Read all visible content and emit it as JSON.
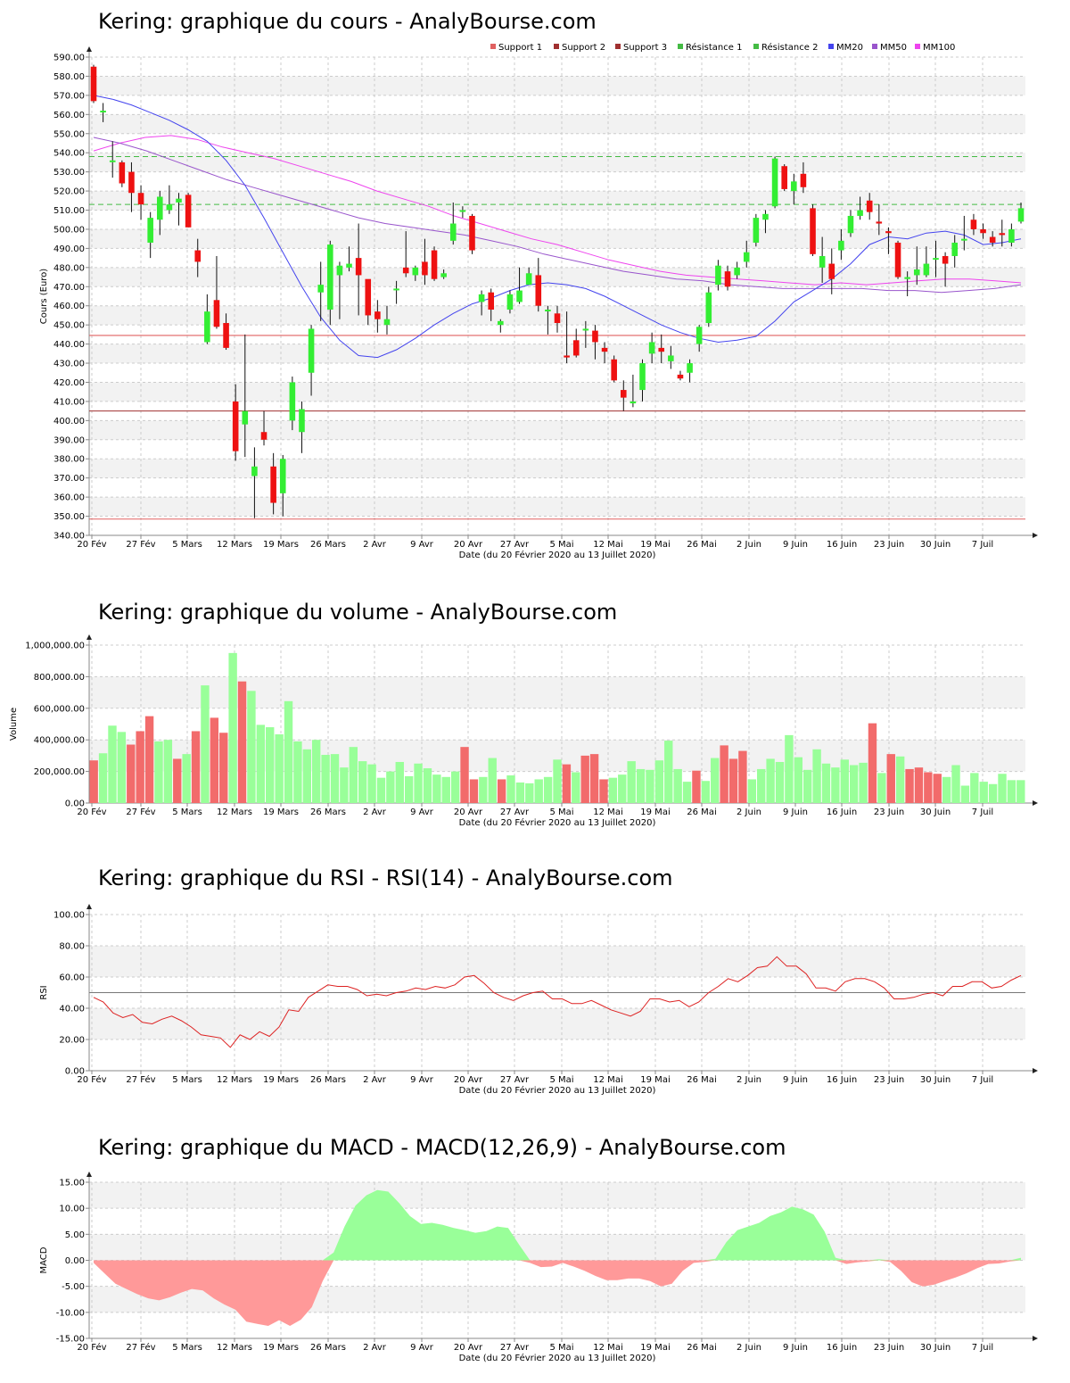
{
  "panels": [
    {
      "title": "Kering: graphique du cours - AnalyBourse.com",
      "ylabel": "Cours (Euro)"
    },
    {
      "title": "Kering: graphique du volume - AnalyBourse.com",
      "ylabel": "Volume"
    },
    {
      "title": "Kering: graphique du RSI - RSI(14) - AnalyBourse.com",
      "ylabel": "RSI"
    },
    {
      "title": "Kering: graphique du MACD - MACD(12,26,9) - AnalyBourse.com",
      "ylabel": "MACD"
    }
  ],
  "x_axis_label": "Date (du 20 Février 2020 au 13 Juillet 2020)",
  "date_ticks": [
    "20 Fév",
    "27 Fév",
    "5 Mars",
    "12 Mars",
    "19 Mars",
    "26 Mars",
    "2 Avr",
    "9 Avr",
    "20 Avr",
    "27 Avr",
    "5 Mai",
    "12 Mai",
    "19 Mai",
    "26 Mai",
    "2 Juin",
    "9 Juin",
    "16 Juin",
    "23 Juin",
    "30 Juin",
    "7 Juil"
  ],
  "colors": {
    "up": "#33ee33",
    "down": "#ee1111",
    "vol_up": "#99ff99",
    "vol_down": "#f26b6b",
    "macd_pos": "#99ff99",
    "macd_neg": "#ff9999",
    "rsi_line": "#dd2222",
    "mm20": "#4444ee",
    "mm50": "#9955cc",
    "mm100": "#ee44ee",
    "support1": "#e06060",
    "support2": "#a03030",
    "resistance1": "#44bb44",
    "grid": "#cccccc",
    "band": "#f2f2f2"
  },
  "chart_data": [
    {
      "type": "candlestick",
      "title": "Kering: graphique du cours - AnalyBourse.com",
      "ylabel": "Cours (Euro)",
      "ylim": [
        340,
        590
      ],
      "yticks": [
        "340.00",
        "350.00",
        "360.00",
        "370.00",
        "380.00",
        "390.00",
        "400.00",
        "410.00",
        "420.00",
        "430.00",
        "440.00",
        "450.00",
        "460.00",
        "470.00",
        "480.00",
        "490.00",
        "500.00",
        "510.00",
        "520.00",
        "530.00",
        "540.00",
        "550.00",
        "560.00",
        "570.00",
        "580.00",
        "590.00"
      ],
      "legend": [
        "Support 1",
        "Support 2",
        "Support 3",
        "Résistance 1",
        "Résistance 2",
        "MM20",
        "MM50",
        "MM100"
      ],
      "legend_position": "top-right",
      "levels": {
        "support1": 444.5,
        "support2": 405,
        "support3": 348.5,
        "resistance1": 538,
        "resistance2": 513
      },
      "candles": [
        [
          585,
          567,
          586,
          566
        ],
        [
          562,
          562,
          566,
          556
        ],
        [
          536,
          536,
          546,
          527
        ],
        [
          535,
          524,
          536,
          522
        ],
        [
          530,
          519,
          535,
          509
        ],
        [
          519,
          513,
          523,
          505
        ],
        [
          493,
          506,
          509,
          485
        ],
        [
          505,
          517,
          520,
          497
        ],
        [
          510,
          513,
          523,
          508
        ],
        [
          514,
          516,
          519,
          502
        ],
        [
          518,
          501,
          519,
          501
        ],
        [
          489,
          483,
          495,
          475
        ],
        [
          441,
          457,
          466,
          440
        ],
        [
          463,
          449,
          486,
          448
        ],
        [
          451,
          438,
          456,
          437
        ],
        [
          410,
          384,
          419,
          379
        ],
        [
          398,
          405,
          445,
          381
        ],
        [
          371,
          376,
          386,
          349
        ],
        [
          394,
          390,
          405,
          387
        ],
        [
          376,
          357,
          383,
          351
        ],
        [
          362,
          380,
          382,
          350
        ],
        [
          400,
          420,
          423,
          395
        ],
        [
          394,
          406,
          410,
          383
        ],
        [
          425,
          448,
          450,
          413
        ],
        [
          467,
          471,
          483,
          452
        ],
        [
          458,
          492,
          494,
          450
        ],
        [
          476,
          481,
          483,
          453
        ],
        [
          480,
          482,
          491,
          478
        ],
        [
          485,
          476,
          503,
          455
        ],
        [
          474,
          455,
          465,
          450
        ],
        [
          457,
          453,
          463,
          446
        ],
        [
          450,
          453,
          460,
          445
        ],
        [
          469,
          469,
          473,
          461
        ],
        [
          480,
          477,
          499,
          475
        ],
        [
          476,
          480,
          481,
          473
        ],
        [
          483,
          476,
          495,
          471
        ],
        [
          489,
          474,
          491,
          473
        ],
        [
          475,
          477,
          479,
          474
        ],
        [
          494,
          503,
          514,
          492
        ],
        [
          510,
          510,
          512,
          506
        ],
        [
          507,
          489,
          508,
          487
        ],
        [
          462,
          466,
          468,
          455
        ],
        [
          467,
          458,
          469,
          452
        ],
        [
          450,
          452,
          453,
          446
        ],
        [
          458,
          466,
          468,
          456
        ],
        [
          462,
          468,
          480,
          461
        ],
        [
          471,
          477,
          480,
          472
        ],
        [
          476,
          460,
          485,
          457
        ],
        [
          458,
          458,
          460,
          445
        ],
        [
          456,
          451,
          460,
          446
        ],
        [
          434,
          433,
          457,
          430
        ],
        [
          442,
          434,
          448,
          433
        ],
        [
          448,
          448,
          452,
          438
        ],
        [
          447,
          441,
          450,
          432
        ],
        [
          438,
          436,
          441,
          430
        ],
        [
          432,
          421,
          434,
          420
        ],
        [
          416,
          412,
          421,
          405
        ],
        [
          409,
          410,
          424,
          407
        ],
        [
          416,
          430,
          432,
          410
        ],
        [
          435,
          441,
          446,
          430
        ],
        [
          438,
          436,
          445,
          430
        ],
        [
          431,
          434,
          439,
          427
        ],
        [
          424,
          422,
          426,
          421
        ],
        [
          425,
          430,
          432,
          420
        ],
        [
          440,
          449,
          450,
          436
        ],
        [
          451,
          467,
          470,
          449
        ],
        [
          471,
          481,
          484,
          468
        ],
        [
          478,
          470,
          481,
          468
        ],
        [
          476,
          480,
          483,
          474
        ],
        [
          483,
          488,
          494,
          480
        ],
        [
          493,
          506,
          508,
          491
        ],
        [
          505,
          508,
          510,
          498
        ],
        [
          512,
          537,
          538,
          511
        ],
        [
          533,
          521,
          534,
          520
        ],
        [
          520,
          525,
          529,
          513
        ],
        [
          529,
          522,
          535,
          519
        ],
        [
          511,
          487,
          513,
          486
        ],
        [
          480,
          486,
          496,
          472
        ],
        [
          482,
          474,
          490,
          466
        ],
        [
          489,
          494,
          500,
          484
        ],
        [
          498,
          507,
          510,
          496
        ],
        [
          507,
          510,
          517,
          505
        ],
        [
          515,
          509,
          519,
          505
        ],
        [
          504,
          503,
          513,
          497
        ],
        [
          499,
          498,
          501,
          487
        ],
        [
          493,
          475,
          494,
          474
        ],
        [
          474,
          475,
          478,
          465
        ],
        [
          476,
          479,
          491,
          471
        ],
        [
          476,
          482,
          491,
          475
        ],
        [
          485,
          485,
          494,
          475
        ],
        [
          486,
          482,
          488,
          470
        ],
        [
          486,
          493,
          497,
          480
        ],
        [
          495,
          495,
          507,
          489
        ],
        [
          505,
          500,
          508,
          497
        ],
        [
          500,
          498,
          503,
          495
        ],
        [
          496,
          493,
          499,
          491
        ],
        [
          498,
          497,
          505,
          491
        ],
        [
          493,
          500,
          503,
          491
        ],
        [
          504,
          511,
          514,
          503
        ]
      ],
      "mm20": [
        570,
        568,
        565,
        561,
        557,
        552,
        546,
        536,
        523,
        506,
        488,
        470,
        454,
        442,
        434,
        433,
        437,
        443,
        450,
        456,
        461,
        464,
        468,
        471,
        472,
        471,
        469,
        465,
        460,
        455,
        450,
        446,
        443,
        441,
        442,
        444,
        452,
        462,
        468,
        474,
        482,
        492,
        496,
        495,
        498,
        499,
        497,
        492,
        493,
        495
      ],
      "mm50": [
        548,
        545,
        541,
        536,
        531,
        526,
        522,
        518,
        514,
        510,
        506,
        503,
        501,
        499,
        497,
        494,
        491,
        487,
        484,
        481,
        478,
        476,
        474,
        473,
        471,
        470,
        469,
        469,
        469,
        469,
        468,
        468,
        467,
        468,
        469,
        471
      ],
      "mm100": [
        541,
        545,
        548,
        549,
        547,
        543,
        540,
        537,
        533,
        529,
        525,
        520,
        516,
        512,
        507,
        503,
        499,
        495,
        492,
        488,
        484,
        481,
        478,
        476,
        475,
        474,
        473,
        472,
        471,
        472,
        471,
        472,
        473,
        474,
        474,
        473,
        472
      ]
    },
    {
      "type": "bar",
      "title": "Kering: graphique du volume - AnalyBourse.com",
      "ylabel": "Volume",
      "ylim": [
        0,
        1000000
      ],
      "yticks": [
        "0.00",
        "200,000.00",
        "400,000.00",
        "600,000.00",
        "800,000.00",
        "1,000,000.00"
      ],
      "values": [
        270000,
        315000,
        490000,
        450000,
        370000,
        455000,
        550000,
        390000,
        400000,
        280000,
        310000,
        455000,
        745000,
        540000,
        445000,
        950000,
        770000,
        710000,
        495000,
        480000,
        435000,
        645000,
        390000,
        340000,
        400000,
        305000,
        310000,
        225000,
        355000,
        265000,
        245000,
        160000,
        200000,
        260000,
        170000,
        250000,
        220000,
        180000,
        165000,
        200000,
        355000,
        150000,
        165000,
        285000,
        150000,
        175000,
        130000,
        125000,
        150000,
        165000,
        275000,
        245000,
        195000,
        300000,
        310000,
        150000,
        160000,
        180000,
        265000,
        215000,
        210000,
        270000,
        395000,
        215000,
        135000,
        205000,
        140000,
        285000,
        365000,
        280000,
        330000,
        150000,
        215000,
        280000,
        260000,
        430000,
        290000,
        210000,
        340000,
        250000,
        225000,
        275000,
        240000,
        255000,
        505000,
        190000,
        310000,
        295000,
        215000,
        225000,
        195000,
        185000,
        165000,
        240000,
        110000,
        190000,
        135000,
        120000,
        185000,
        145000,
        145000
      ]
    },
    {
      "type": "line",
      "title": "Kering: graphique du RSI - RSI(14) - AnalyBourse.com",
      "ylabel": "RSI",
      "ylim": [
        0,
        100
      ],
      "yticks": [
        "0.00",
        "20.00",
        "40.00",
        "60.00",
        "80.00",
        "100.00"
      ],
      "reference": 50,
      "values": [
        47,
        44,
        37,
        34,
        36,
        31,
        30,
        33,
        35,
        32,
        28,
        23,
        22,
        21,
        15,
        23,
        20,
        25,
        22,
        28,
        39,
        38,
        47,
        51,
        55,
        54,
        54,
        52,
        48,
        49,
        48,
        50,
        51,
        53,
        52,
        54,
        53,
        55,
        60,
        61,
        56,
        50,
        47,
        45,
        48,
        50,
        51,
        46,
        46,
        43,
        43,
        45,
        42,
        39,
        37,
        35,
        38,
        46,
        46,
        44,
        45,
        41,
        44,
        50,
        54,
        59,
        57,
        61,
        66,
        67,
        73,
        67,
        67,
        62,
        53,
        53,
        51,
        57,
        59,
        59,
        57,
        53,
        46,
        46,
        47,
        49,
        50,
        48,
        54,
        54,
        57,
        57,
        53,
        54,
        58,
        61
      ]
    },
    {
      "type": "area",
      "title": "Kering: graphique du MACD - MACD(12,26,9) - AnalyBourse.com",
      "ylabel": "MACD",
      "ylim": [
        -15,
        15
      ],
      "yticks": [
        "-15.00",
        "-10.00",
        "-5.00",
        "0.00",
        "5.00",
        "10.00",
        "15.00"
      ],
      "values": [
        -0.5,
        -2.5,
        -4.5,
        -5.5,
        -6.5,
        -7.3,
        -7.7,
        -7.1,
        -6.2,
        -5.5,
        -5.8,
        -7.3,
        -8.5,
        -9.5,
        -11.8,
        -12.2,
        -12.6,
        -11.5,
        -12.6,
        -11.4,
        -9.0,
        -4.0,
        1.5,
        6.5,
        10.5,
        12.5,
        13.5,
        13.2,
        11.0,
        8.5,
        7.0,
        7.2,
        6.8,
        6.2,
        5.8,
        5.3,
        5.6,
        6.5,
        6.2,
        3.0,
        -0.5,
        -1.3,
        -1.2,
        -0.5,
        -1.2,
        -2.0,
        -3.0,
        -3.8,
        -3.8,
        -3.5,
        -3.5,
        -4.0,
        -5.0,
        -4.5,
        -2.0,
        -0.5,
        -0.3,
        0.3,
        3.5,
        5.8,
        6.5,
        7.2,
        8.5,
        9.2,
        10.3,
        9.8,
        8.8,
        5.5,
        0.5,
        -0.7,
        -0.4,
        -0.2,
        0.2,
        -0.3,
        -2.0,
        -4.2,
        -5.0,
        -4.7,
        -4.0,
        -3.3,
        -2.5,
        -1.5,
        -0.7,
        -0.6,
        -0.2,
        0.5
      ]
    }
  ]
}
